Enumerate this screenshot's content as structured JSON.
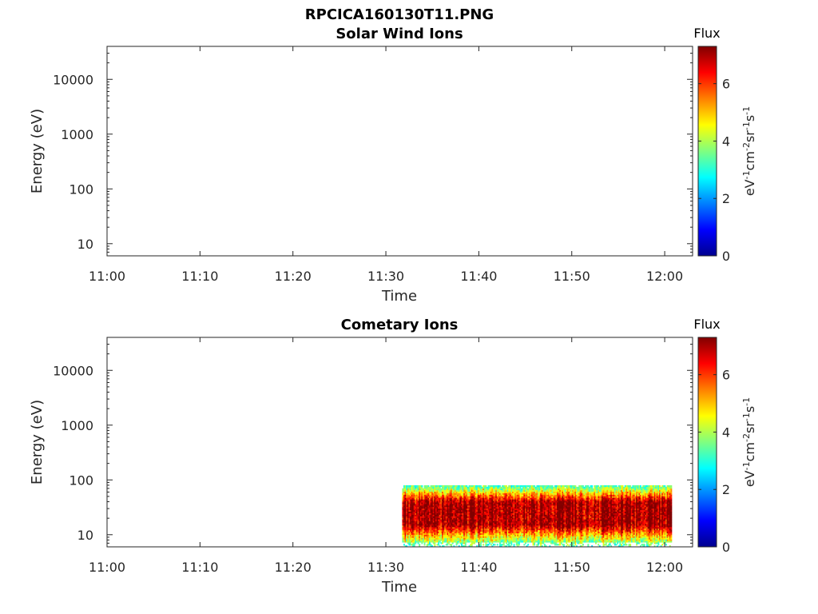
{
  "figure_title": "RPCICA160130T11.PNG",
  "colorbar": {
    "title": "Flux",
    "label_parts": [
      {
        "text": "eV",
        "sup": false
      },
      {
        "text": "-1",
        "sup": true
      },
      {
        "text": "cm",
        "sup": false
      },
      {
        "text": "-2",
        "sup": true
      },
      {
        "text": "sr",
        "sup": false
      },
      {
        "text": "-1",
        "sup": true
      },
      {
        "text": "s",
        "sup": false
      },
      {
        "text": "-1",
        "sup": true
      }
    ],
    "ticks": [
      "0",
      "2",
      "4",
      "6"
    ],
    "colormap": "jet"
  },
  "chart_data": [
    {
      "type": "heatmap",
      "title": "Solar Wind Ions",
      "xlabel": "Time",
      "ylabel": "Energy (eV)",
      "x_ticks": [
        "11:00",
        "11:10",
        "11:20",
        "11:30",
        "11:40",
        "11:50",
        "12:00"
      ],
      "xlim": [
        "11:00",
        "12:03"
      ],
      "y_ticks": [
        "10",
        "100",
        "1000",
        "10000"
      ],
      "ylim": [
        6,
        40000
      ],
      "y_scale": "log",
      "clim": [
        0,
        7.3
      ],
      "data": "empty"
    },
    {
      "type": "heatmap",
      "title": "Cometary Ions",
      "xlabel": "Time",
      "ylabel": "Energy (eV)",
      "x_ticks": [
        "11:00",
        "11:10",
        "11:20",
        "11:30",
        "11:40",
        "11:50",
        "12:00"
      ],
      "xlim": [
        "11:00",
        "12:03"
      ],
      "y_ticks": [
        "10",
        "100",
        "1000",
        "10000"
      ],
      "ylim": [
        6,
        40000
      ],
      "y_scale": "log",
      "clim": [
        0,
        7.3
      ],
      "data_region": {
        "time_start": "11:31:45",
        "time_end": "12:00:45",
        "energy_min_eV": 6,
        "energy_max_eV": 80,
        "peak_energy_eV": [
          15,
          40
        ],
        "peak_flux": 7,
        "edge_flux": 3.5
      }
    }
  ]
}
